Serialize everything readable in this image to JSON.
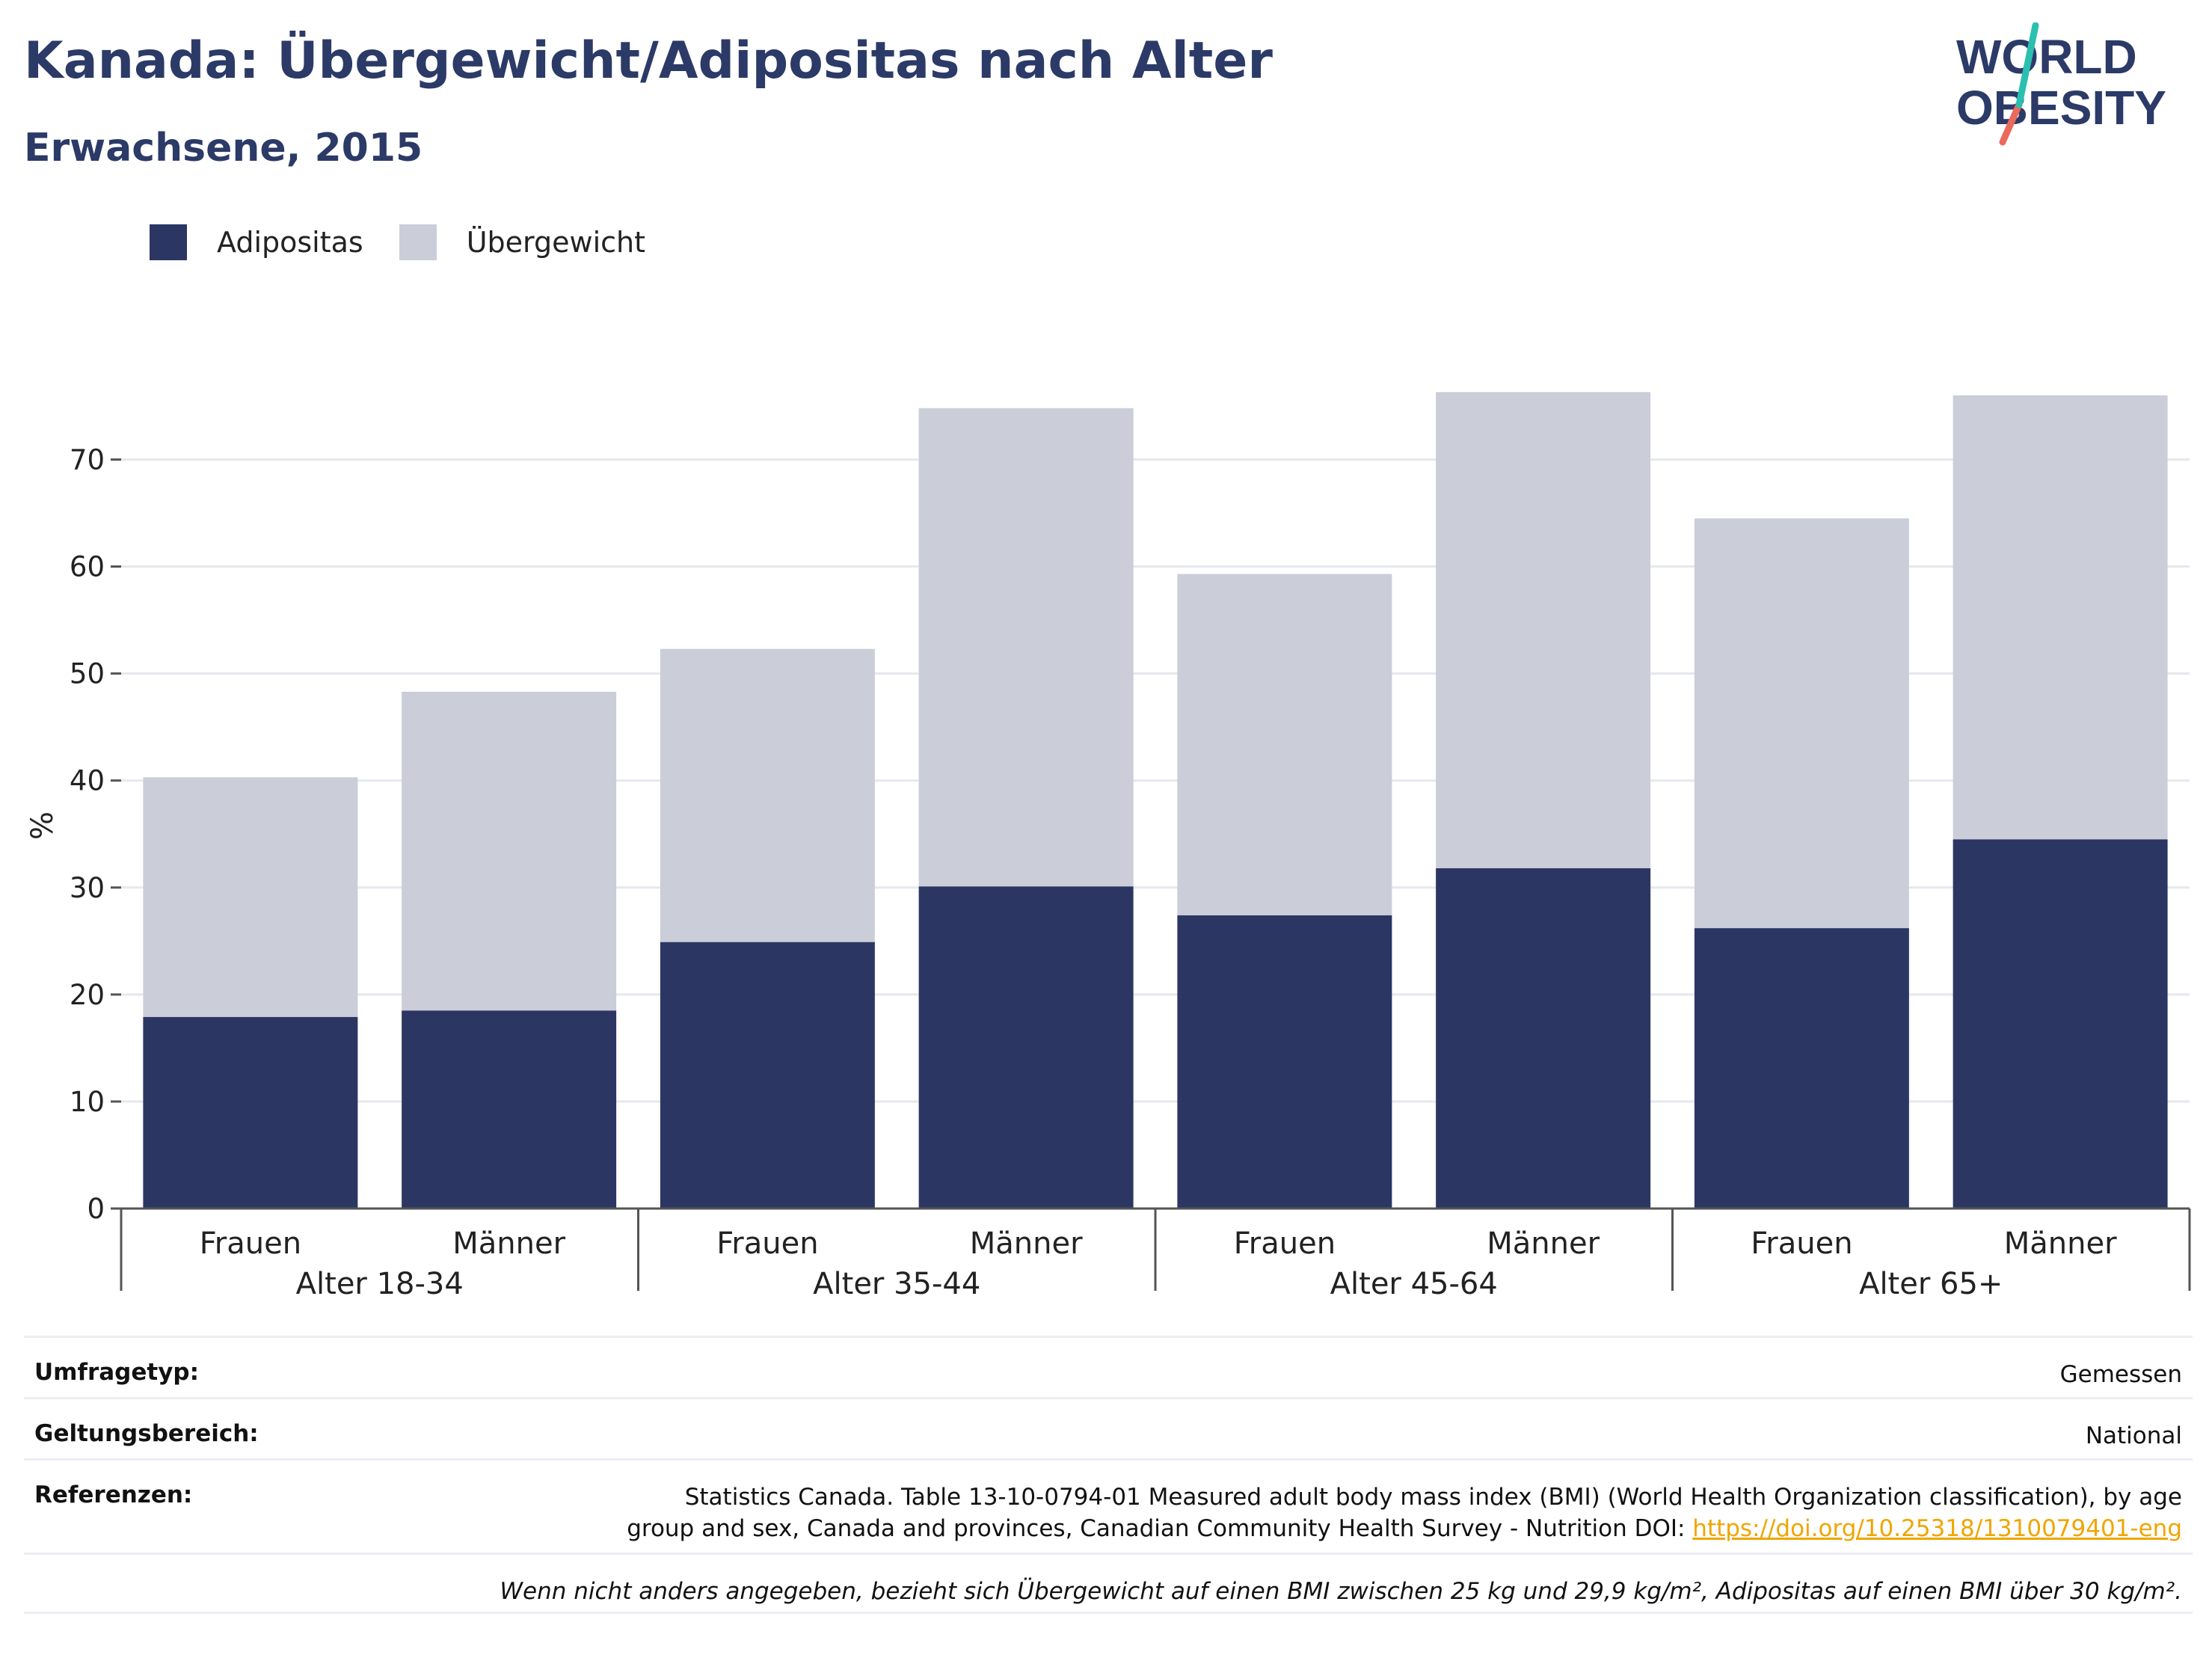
{
  "header": {
    "title": "Kanada: Übergewicht/Adipositas nach Alter",
    "subtitle": "Erwachsene, 2015"
  },
  "logo": {
    "line1": "WORLD",
    "line2": "OBESITY"
  },
  "colors": {
    "obesity": "#2b3663",
    "overweight": "#cbcdd9",
    "title": "#2b3a67",
    "link": "#f0a500",
    "grid": "#e6e8ee",
    "axis": "#555555"
  },
  "legend": {
    "items": [
      {
        "label": "Adipositas",
        "color": "#2b3663"
      },
      {
        "label": "Übergewicht",
        "color": "#cbcdd9"
      }
    ]
  },
  "chart_data": {
    "type": "bar",
    "stacked": true,
    "ylabel": "%",
    "ylim": [
      0,
      78
    ],
    "yticks": [
      0,
      10,
      20,
      30,
      40,
      50,
      60,
      70
    ],
    "grid": true,
    "legend_position": "top-left",
    "groups": [
      "Alter 18-34",
      "Alter 35-44",
      "Alter 45-64",
      "Alter 65+"
    ],
    "categories": [
      "Frauen",
      "Männer",
      "Frauen",
      "Männer",
      "Frauen",
      "Männer",
      "Frauen",
      "Männer"
    ],
    "series": [
      {
        "name": "Adipositas",
        "values": [
          17.9,
          18.5,
          24.9,
          30.1,
          27.4,
          31.8,
          26.2,
          34.5
        ]
      },
      {
        "name": "Übergewicht",
        "values": [
          22.4,
          29.8,
          27.4,
          44.7,
          31.9,
          44.5,
          38.3,
          41.5
        ]
      }
    ]
  },
  "footer": {
    "rows": [
      {
        "label": "Umfragetyp:",
        "value": "Gemessen"
      },
      {
        "label": "Geltungsbereich:",
        "value": "National"
      }
    ],
    "references": {
      "label": "Referenzen:",
      "line1": "Statistics Canada. Table 13-10-0794-01 Measured adult body mass index (BMI) (World Health Organization classification), by age",
      "line2": "group and sex, Canada and provinces, Canadian Community Health Survey - Nutrition DOI: ",
      "doi": "https://doi.org/10.25318/1310079401-eng"
    },
    "note": "Wenn nicht anders angegeben, bezieht sich Übergewicht auf einen BMI zwischen 25 kg und 29,9 kg/m², Adipositas auf einen BMI über 30 kg/m²."
  }
}
